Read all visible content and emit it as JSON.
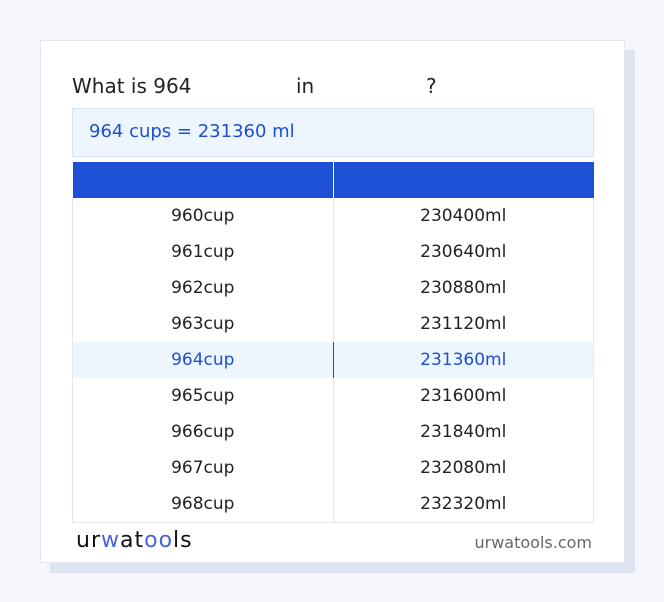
{
  "title": {
    "prefix": "What is 964",
    "mid": "in",
    "suffix": "?"
  },
  "result": "964 cups = 231360 ml",
  "table": {
    "headers": [
      "",
      ""
    ],
    "highlight_index": 4,
    "rows": [
      [
        "960cup",
        "230400ml"
      ],
      [
        "961cup",
        "230640ml"
      ],
      [
        "962cup",
        "230880ml"
      ],
      [
        "963cup",
        "231120ml"
      ],
      [
        "964cup",
        "231360ml"
      ],
      [
        "965cup",
        "231600ml"
      ],
      [
        "966cup",
        "231840ml"
      ],
      [
        "967cup",
        "232080ml"
      ],
      [
        "968cup",
        "232320ml"
      ]
    ]
  },
  "footer": {
    "logo": "urwatools",
    "site": "urwatools.com"
  },
  "colors": {
    "accent": "#1e50d6",
    "highlight_bg": "#edf5ff"
  }
}
